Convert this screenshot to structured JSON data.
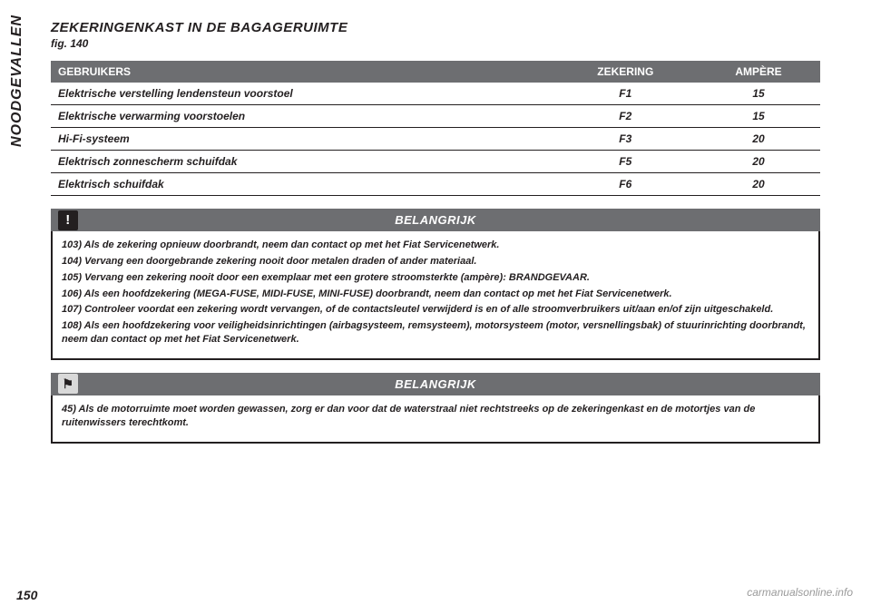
{
  "sideTab": "NOODGEVALLEN",
  "heading": "ZEKERINGENKAST IN DE BAGAGERUIMTE",
  "figLine": "fig. 140",
  "table": {
    "headers": {
      "col1": "GEBRUIKERS",
      "col2": "ZEKERING",
      "col3": "AMPÈRE"
    },
    "rows": [
      {
        "desc": "Elektrische verstelling lendensteun voorstoel",
        "fuse": "F1",
        "amp": "15"
      },
      {
        "desc": "Elektrische verwarming voorstoelen",
        "fuse": "F2",
        "amp": "15"
      },
      {
        "desc": "Hi-Fi-systeem",
        "fuse": "F3",
        "amp": "20"
      },
      {
        "desc": "Elektrisch zonnescherm schuifdak",
        "fuse": "F5",
        "amp": "20"
      },
      {
        "desc": "Elektrisch schuifdak",
        "fuse": "F6",
        "amp": "20"
      }
    ]
  },
  "importantLabel": "BELANGRIJK",
  "warnIconGlyph": "!",
  "envIconGlyph": "⚑",
  "warnings": [
    "103) Als de zekering opnieuw doorbrandt, neem dan contact op met het Fiat Servicenetwerk.",
    "104) Vervang een doorgebrande zekering nooit door metalen draden of ander materiaal.",
    "105) Vervang een zekering nooit door een exemplaar met een grotere stroomsterkte (ampère): BRANDGEVAAR.",
    "106) Als een hoofdzekering (MEGA-FUSE, MIDI-FUSE, MINI-FUSE) doorbrandt, neem dan contact op met het Fiat Servicenetwerk.",
    "107) Controleer voordat een zekering wordt vervangen, of de contactsleutel verwijderd is en of alle stroomverbruikers uit/aan en/of zijn uitgeschakeld.",
    "108) Als een hoofdzekering voor veiligheidsinrichtingen (airbagsysteem, remsysteem), motorsysteem (motor, versnellingsbak) of stuurinrichting doorbrandt, neem dan contact op met het Fiat Servicenetwerk."
  ],
  "envNote": "45) Als de motorruimte moet worden gewassen, zorg er dan voor dat de waterstraal niet rechtstreeks op de zekeringenkast en de motortjes van de ruitenwissers terechtkomt.",
  "pageNumber": "150",
  "url": "carmanualsonline.info"
}
